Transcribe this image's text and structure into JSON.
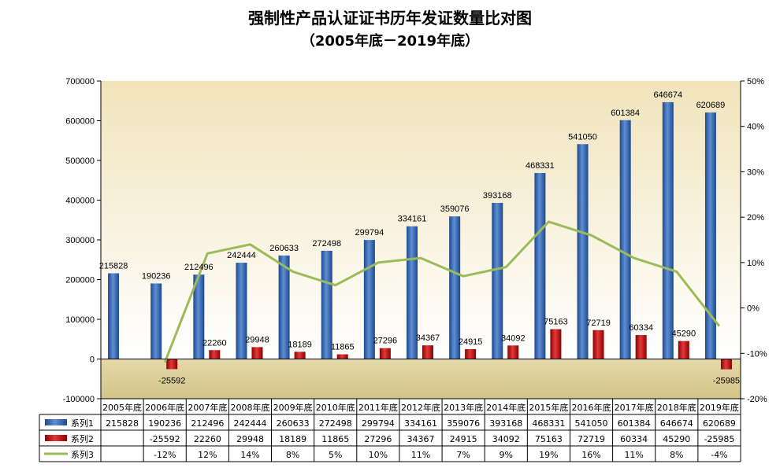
{
  "chart_data": {
    "type": "bar",
    "title": "强制性产品认证证书历年发证数量比对图",
    "subtitle": "（2005年底－2019年底）",
    "categories": [
      "2005年底",
      "2006年底",
      "2007年底",
      "2008年底",
      "2009年底",
      "2010年底",
      "2011年底",
      "2012年底",
      "2013年底",
      "2014年底",
      "2015年底",
      "2016年底",
      "2017年底",
      "2018年底",
      "2019年底"
    ],
    "series": [
      {
        "name": "系列1",
        "type": "bar",
        "axis": "left",
        "color": "#2E5DA8",
        "values": [
          215828,
          190236,
          212496,
          242444,
          260633,
          272498,
          299794,
          334161,
          359076,
          393168,
          468331,
          541050,
          601384,
          646674,
          620689
        ],
        "labels": [
          "215828",
          "190236",
          "212496",
          "242444",
          "260633",
          "272498",
          "299794",
          "334161",
          "359076",
          "393168",
          "468331",
          "541050",
          "601384",
          "646674",
          "620689"
        ]
      },
      {
        "name": "系列2",
        "type": "bar",
        "axis": "left",
        "color": "#C00000",
        "values": [
          null,
          -25592,
          22260,
          29948,
          18189,
          11865,
          27296,
          34367,
          24915,
          34092,
          75163,
          72719,
          60334,
          45290,
          -25985
        ],
        "labels": [
          "",
          "-25592",
          "22260",
          "29948",
          "18189",
          "11865",
          "27296",
          "34367",
          "24915",
          "34092",
          "75163",
          "72719",
          "60334",
          "45290",
          "-25985"
        ]
      },
      {
        "name": "系列3",
        "type": "line",
        "axis": "right",
        "color": "#9BBB59",
        "values": [
          null,
          -12,
          12,
          14,
          8,
          5,
          10,
          11,
          7,
          9,
          19,
          16,
          11,
          8,
          -4
        ],
        "labels": [
          "",
          "-12%",
          "12%",
          "14%",
          "8%",
          "5%",
          "10%",
          "11%",
          "7%",
          "9%",
          "19%",
          "16%",
          "11%",
          "8%",
          "-4%"
        ]
      }
    ],
    "y_left": {
      "min": -100000,
      "max": 700000,
      "step": 100000,
      "ticks": [
        "-100000",
        "0",
        "100000",
        "200000",
        "300000",
        "400000",
        "500000",
        "600000",
        "700000"
      ]
    },
    "y_right": {
      "min": -20,
      "max": 50,
      "step": 10,
      "ticks": [
        "-20%",
        "-10%",
        "0%",
        "10%",
        "20%",
        "30%",
        "40%",
        "50%"
      ]
    },
    "legend_placement": "data-table",
    "grid": false,
    "plot_background": [
      "#F4E9C6",
      "#FFFFFF"
    ]
  }
}
